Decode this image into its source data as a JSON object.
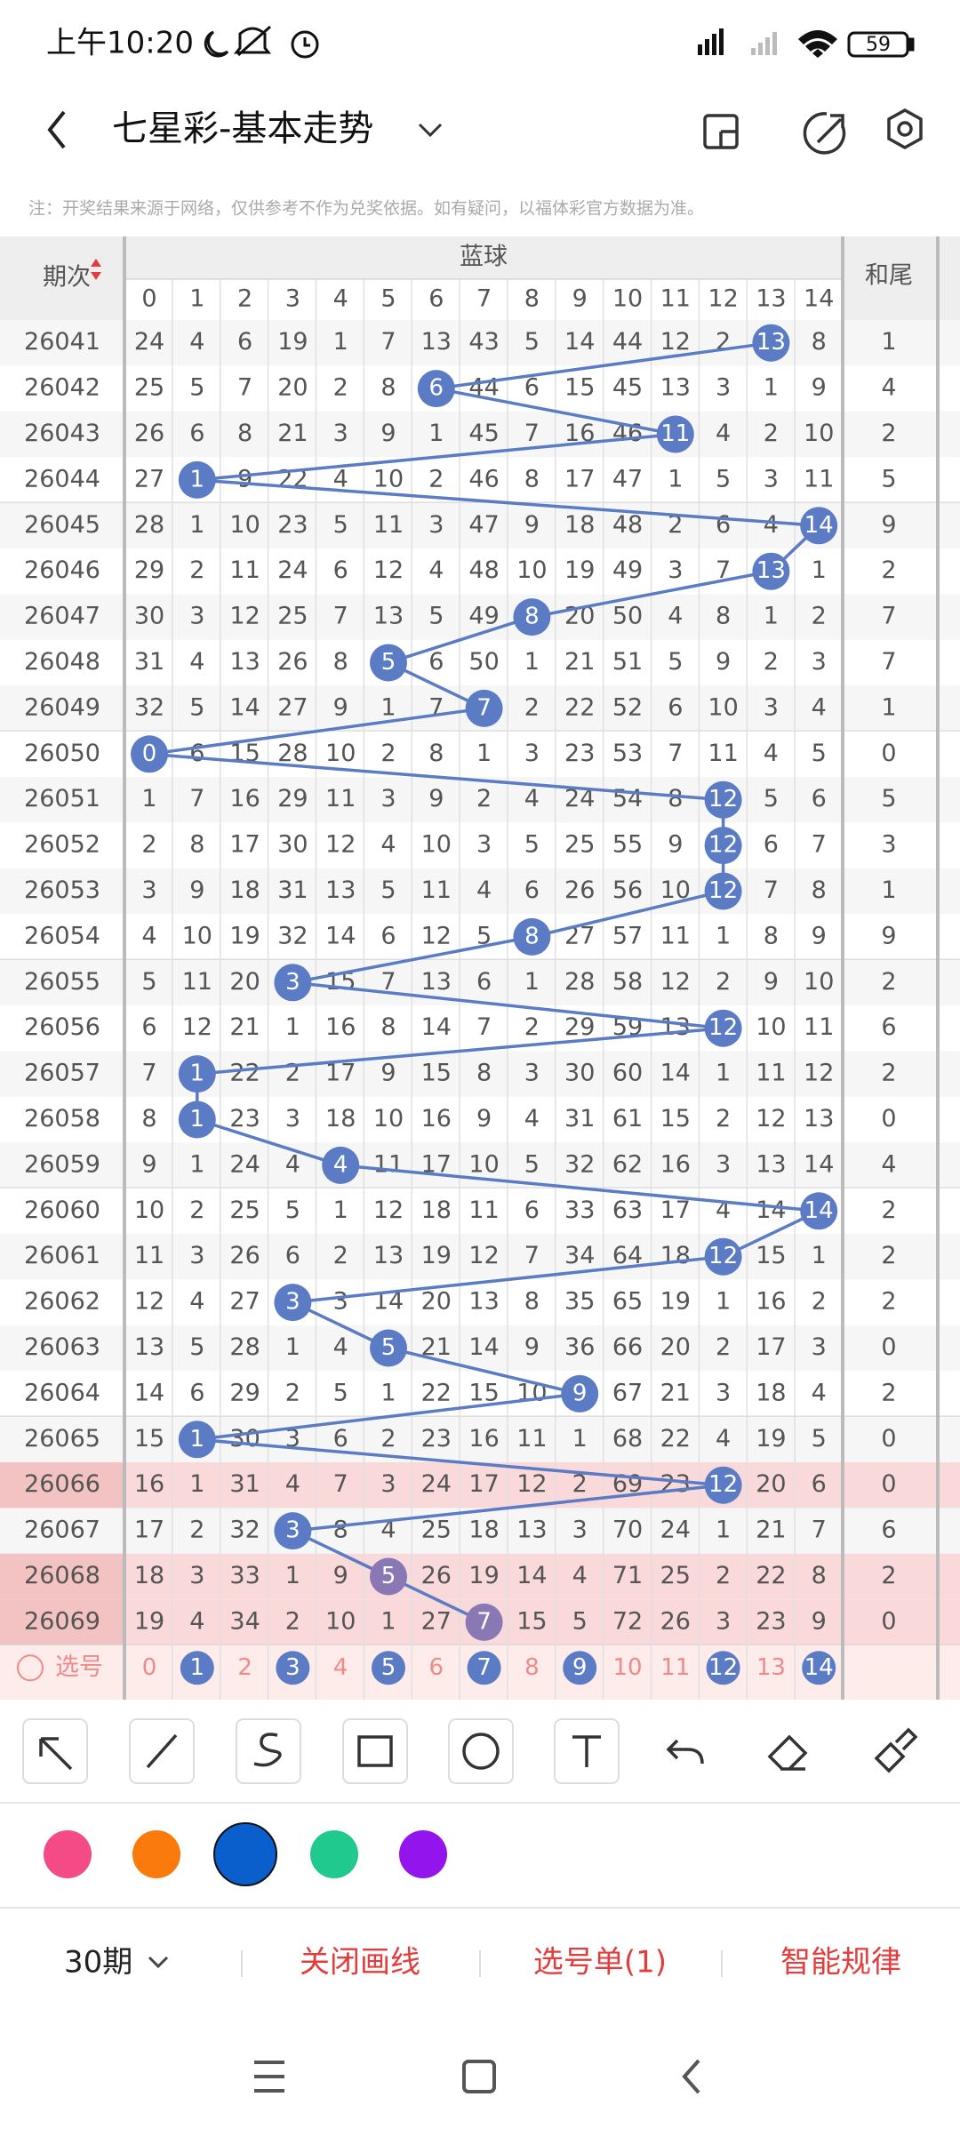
{
  "status_bar": {
    "time": "上午10:20",
    "battery": "59"
  },
  "header": {
    "title": "七星彩-基本走势"
  },
  "note": "注：开奖结果来源于网络，仅供参考不作为兑奖依据。如有疑问，以福体彩官方数据为准。",
  "table": {
    "period_header": "期次",
    "group_header": "蓝球",
    "tail_header": "和尾",
    "columns": [
      0,
      1,
      2,
      3,
      4,
      5,
      6,
      7,
      8,
      9,
      10,
      11,
      12,
      13,
      14
    ],
    "rows": [
      {
        "period": "26041",
        "cells": [
          24,
          4,
          6,
          19,
          1,
          7,
          13,
          43,
          5,
          14,
          44,
          12,
          2,
          13,
          8
        ],
        "hit": 13,
        "tail": 1
      },
      {
        "period": "26042",
        "cells": [
          25,
          5,
          7,
          20,
          2,
          8,
          6,
          44,
          6,
          15,
          45,
          13,
          3,
          1,
          9
        ],
        "hit": 6,
        "tail": 4
      },
      {
        "period": "26043",
        "cells": [
          26,
          6,
          8,
          21,
          3,
          9,
          1,
          45,
          7,
          16,
          46,
          11,
          4,
          2,
          10
        ],
        "hit": 11,
        "tail": 2
      },
      {
        "period": "26044",
        "cells": [
          27,
          1,
          9,
          22,
          4,
          10,
          2,
          46,
          8,
          17,
          47,
          1,
          5,
          3,
          11
        ],
        "hit": 1,
        "tail": 5
      },
      {
        "period": "26045",
        "cells": [
          28,
          1,
          10,
          23,
          5,
          11,
          3,
          47,
          9,
          18,
          48,
          2,
          6,
          4,
          14
        ],
        "hit": 14,
        "tail": 9
      },
      {
        "period": "26046",
        "cells": [
          29,
          2,
          11,
          24,
          6,
          12,
          4,
          48,
          10,
          19,
          49,
          3,
          7,
          13,
          1
        ],
        "hit": 13,
        "tail": 2
      },
      {
        "period": "26047",
        "cells": [
          30,
          3,
          12,
          25,
          7,
          13,
          5,
          49,
          8,
          20,
          50,
          4,
          8,
          1,
          2
        ],
        "hit": 8,
        "tail": 7
      },
      {
        "period": "26048",
        "cells": [
          31,
          4,
          13,
          26,
          8,
          5,
          6,
          50,
          1,
          21,
          51,
          5,
          9,
          2,
          3
        ],
        "hit": 5,
        "tail": 7
      },
      {
        "period": "26049",
        "cells": [
          32,
          5,
          14,
          27,
          9,
          1,
          7,
          7,
          2,
          22,
          52,
          6,
          10,
          3,
          4
        ],
        "hit": 7,
        "tail": 1
      },
      {
        "period": "26050",
        "cells": [
          0,
          6,
          15,
          28,
          10,
          2,
          8,
          1,
          3,
          23,
          53,
          7,
          11,
          4,
          5
        ],
        "hit": 0,
        "tail": 0
      },
      {
        "period": "26051",
        "cells": [
          1,
          7,
          16,
          29,
          11,
          3,
          9,
          2,
          4,
          24,
          54,
          8,
          12,
          5,
          6
        ],
        "hit": 12,
        "tail": 5
      },
      {
        "period": "26052",
        "cells": [
          2,
          8,
          17,
          30,
          12,
          4,
          10,
          3,
          5,
          25,
          55,
          9,
          12,
          6,
          7
        ],
        "hit": 12,
        "tail": 3
      },
      {
        "period": "26053",
        "cells": [
          3,
          9,
          18,
          31,
          13,
          5,
          11,
          4,
          6,
          26,
          56,
          10,
          12,
          7,
          8
        ],
        "hit": 12,
        "tail": 1
      },
      {
        "period": "26054",
        "cells": [
          4,
          10,
          19,
          32,
          14,
          6,
          12,
          5,
          8,
          27,
          57,
          11,
          1,
          8,
          9
        ],
        "hit": 8,
        "tail": 9
      },
      {
        "period": "26055",
        "cells": [
          5,
          11,
          20,
          3,
          15,
          7,
          13,
          6,
          1,
          28,
          58,
          12,
          2,
          9,
          10
        ],
        "hit": 3,
        "tail": 2
      },
      {
        "period": "26056",
        "cells": [
          6,
          12,
          21,
          1,
          16,
          8,
          14,
          7,
          2,
          29,
          59,
          13,
          12,
          10,
          11
        ],
        "hit": 12,
        "tail": 6
      },
      {
        "period": "26057",
        "cells": [
          7,
          1,
          22,
          2,
          17,
          9,
          15,
          8,
          3,
          30,
          60,
          14,
          1,
          11,
          12
        ],
        "hit": 1,
        "tail": 2
      },
      {
        "period": "26058",
        "cells": [
          8,
          1,
          23,
          3,
          18,
          10,
          16,
          9,
          4,
          31,
          61,
          15,
          2,
          12,
          13
        ],
        "hit": 1,
        "tail": 0
      },
      {
        "period": "26059",
        "cells": [
          9,
          1,
          24,
          4,
          4,
          11,
          17,
          10,
          5,
          32,
          62,
          16,
          3,
          13,
          14
        ],
        "hit": 4,
        "tail": 4
      },
      {
        "period": "26060",
        "cells": [
          10,
          2,
          25,
          5,
          1,
          12,
          18,
          11,
          6,
          33,
          63,
          17,
          4,
          14,
          14
        ],
        "hit": 14,
        "tail": 2
      },
      {
        "period": "26061",
        "cells": [
          11,
          3,
          26,
          6,
          2,
          13,
          19,
          12,
          7,
          34,
          64,
          18,
          12,
          15,
          1
        ],
        "hit": 12,
        "tail": 2
      },
      {
        "period": "26062",
        "cells": [
          12,
          4,
          27,
          3,
          3,
          14,
          20,
          13,
          8,
          35,
          65,
          19,
          1,
          16,
          2
        ],
        "hit": 3,
        "tail": 2
      },
      {
        "period": "26063",
        "cells": [
          13,
          5,
          28,
          1,
          4,
          5,
          21,
          14,
          9,
          36,
          66,
          20,
          2,
          17,
          3
        ],
        "hit": 5,
        "tail": 0
      },
      {
        "period": "26064",
        "cells": [
          14,
          6,
          29,
          2,
          5,
          1,
          22,
          15,
          10,
          9,
          67,
          21,
          3,
          18,
          4
        ],
        "hit": 9,
        "tail": 2
      },
      {
        "period": "26065",
        "cells": [
          15,
          1,
          30,
          3,
          6,
          2,
          23,
          16,
          11,
          1,
          68,
          22,
          4,
          19,
          5
        ],
        "hit": 1,
        "tail": 0
      },
      {
        "period": "26066",
        "cells": [
          16,
          1,
          31,
          4,
          7,
          3,
          24,
          17,
          12,
          2,
          69,
          23,
          12,
          20,
          6
        ],
        "hit": 12,
        "tail": 0,
        "highlight": true
      },
      {
        "period": "26067",
        "cells": [
          17,
          2,
          32,
          3,
          8,
          4,
          25,
          18,
          13,
          3,
          70,
          24,
          1,
          21,
          7
        ],
        "hit": 3,
        "tail": 6
      },
      {
        "period": "26068",
        "cells": [
          18,
          3,
          33,
          1,
          9,
          5,
          26,
          19,
          14,
          4,
          71,
          25,
          2,
          22,
          8
        ],
        "hit": 5,
        "tail": 2,
        "highlight": true
      },
      {
        "period": "26069",
        "cells": [
          19,
          4,
          34,
          2,
          10,
          1,
          27,
          7,
          15,
          5,
          72,
          26,
          3,
          23,
          9
        ],
        "hit": 7,
        "tail": 0,
        "highlight": true
      }
    ],
    "select_row": {
      "label": "选号",
      "numbers": [
        0,
        1,
        2,
        3,
        4,
        5,
        6,
        7,
        8,
        9,
        10,
        11,
        12,
        13,
        14
      ],
      "selected": [
        1,
        3,
        5,
        7,
        9,
        12,
        14
      ]
    }
  },
  "palette": {
    "colors": [
      "#f44a86",
      "#fb7a0c",
      "#0a5fcc",
      "#20c98e",
      "#9414ee"
    ],
    "selected": 2
  },
  "bottom_bar": {
    "periods": "30期",
    "close_lines": "关闭画线",
    "ticket": "选号单(1)",
    "smart": "智能规律"
  }
}
